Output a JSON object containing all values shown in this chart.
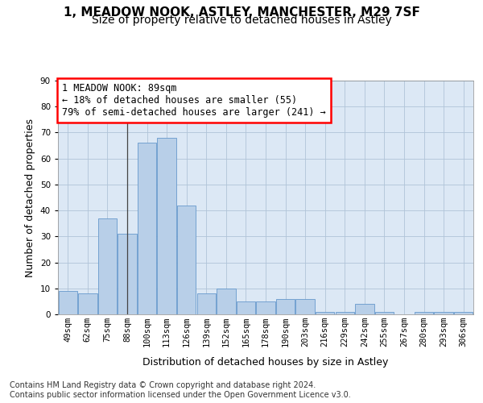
{
  "title": "1, MEADOW NOOK, ASTLEY, MANCHESTER, M29 7SF",
  "subtitle": "Size of property relative to detached houses in Astley",
  "xlabel": "Distribution of detached houses by size in Astley",
  "ylabel": "Number of detached properties",
  "categories": [
    "49sqm",
    "62sqm",
    "75sqm",
    "88sqm",
    "100sqm",
    "113sqm",
    "126sqm",
    "139sqm",
    "152sqm",
    "165sqm",
    "178sqm",
    "190sqm",
    "203sqm",
    "216sqm",
    "229sqm",
    "242sqm",
    "255sqm",
    "267sqm",
    "280sqm",
    "293sqm",
    "306sqm"
  ],
  "values": [
    9,
    8,
    37,
    31,
    66,
    68,
    42,
    8,
    10,
    5,
    5,
    6,
    6,
    1,
    1,
    4,
    1,
    0,
    1,
    1,
    1
  ],
  "bar_color": "#b8cfe8",
  "bar_edge_color": "#6699cc",
  "annotation_box_text": "1 MEADOW NOOK: 89sqm\n← 18% of detached houses are smaller (55)\n79% of semi-detached houses are larger (241) →",
  "marker_bar_index": 3,
  "ylim": [
    0,
    90
  ],
  "yticks": [
    0,
    10,
    20,
    30,
    40,
    50,
    60,
    70,
    80,
    90
  ],
  "background_color": "#ffffff",
  "plot_bg_color": "#dce8f5",
  "grid_color": "#b0c4d8",
  "footer": "Contains HM Land Registry data © Crown copyright and database right 2024.\nContains public sector information licensed under the Open Government Licence v3.0.",
  "title_fontsize": 11,
  "subtitle_fontsize": 10,
  "xlabel_fontsize": 9,
  "ylabel_fontsize": 9,
  "tick_fontsize": 7.5,
  "annotation_fontsize": 8.5,
  "footer_fontsize": 7
}
